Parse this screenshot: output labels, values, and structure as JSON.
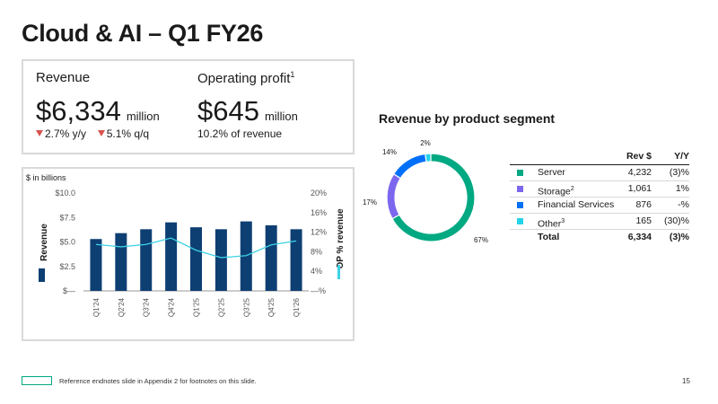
{
  "title": "Cloud & AI – Q1 FY26",
  "kpis": {
    "revenue": {
      "label": "Revenue",
      "value": "$6,334",
      "unit": "million",
      "change_yy": "2.7% y/y",
      "change_qq": "5.1% q/q"
    },
    "operating_profit": {
      "label": "Operating profit",
      "footnote": "1",
      "value": "$645",
      "unit": "million",
      "sub": "10.2% of revenue"
    }
  },
  "chart_data": [
    {
      "type": "bar+line",
      "note": "$ in billions",
      "categories": [
        "Q1'24",
        "Q2'24",
        "Q3'24",
        "Q4'24",
        "Q1'25",
        "Q2'25",
        "Q3'25",
        "Q4'25",
        "Q1'26"
      ],
      "series": [
        {
          "name": "Revenue",
          "type": "bar",
          "axis": "left",
          "color": "#0d3f73",
          "values": [
            5.3,
            5.9,
            6.3,
            7.0,
            6.5,
            6.3,
            7.1,
            6.7,
            6.3
          ]
        },
        {
          "name": "OP % revenue",
          "type": "line",
          "axis": "right",
          "color": "#3dd2e6",
          "values": [
            9.5,
            9.0,
            9.5,
            10.8,
            8.3,
            6.8,
            7.2,
            9.4,
            10.2
          ]
        }
      ],
      "ylabel_left": "Revenue",
      "ylabel_right": "OP % revenue",
      "yticks_left": [
        "$—",
        "$2.5",
        "$5.0",
        "$7.5",
        "$10.0"
      ],
      "yticks_right": [
        "—%",
        "4%",
        "8%",
        "12%",
        "16%",
        "20%"
      ],
      "ylim_left": [
        0,
        10
      ],
      "ylim_right": [
        0,
        20
      ]
    },
    {
      "type": "pie",
      "title": "Revenue by product segment",
      "labels": [
        "Server",
        "Storage",
        "Financial Services",
        "Other"
      ],
      "values": [
        67,
        17,
        14,
        2
      ],
      "value_labels": [
        "67%",
        "17%",
        "14%",
        "2%"
      ],
      "colors": [
        "#01a982",
        "#7b68ee",
        "#0070f8",
        "#23d3e8"
      ]
    }
  ],
  "table": {
    "headers": {
      "rev": "Rev $",
      "yy": "Y/Y"
    },
    "rows": [
      {
        "name": "Server",
        "sup": "",
        "rev": "4,232",
        "yy": "(3)%",
        "color": "#01a982"
      },
      {
        "name": "Storage",
        "sup": "2",
        "rev": "1,061",
        "yy": "1%",
        "color": "#7b68ee"
      },
      {
        "name": "Financial Services",
        "sup": "",
        "rev": "876",
        "yy": "-%",
        "color": "#0070f8"
      },
      {
        "name": "Other",
        "sup": "3",
        "rev": "165",
        "yy": "(30)%",
        "color": "#23d3e8"
      }
    ],
    "total": {
      "name": "Total",
      "rev": "6,334",
      "yy": "(3)%"
    }
  },
  "footer": {
    "text": "Reference endnotes slide in Appendix 2 for footnotes on this slide.",
    "page": "15"
  }
}
